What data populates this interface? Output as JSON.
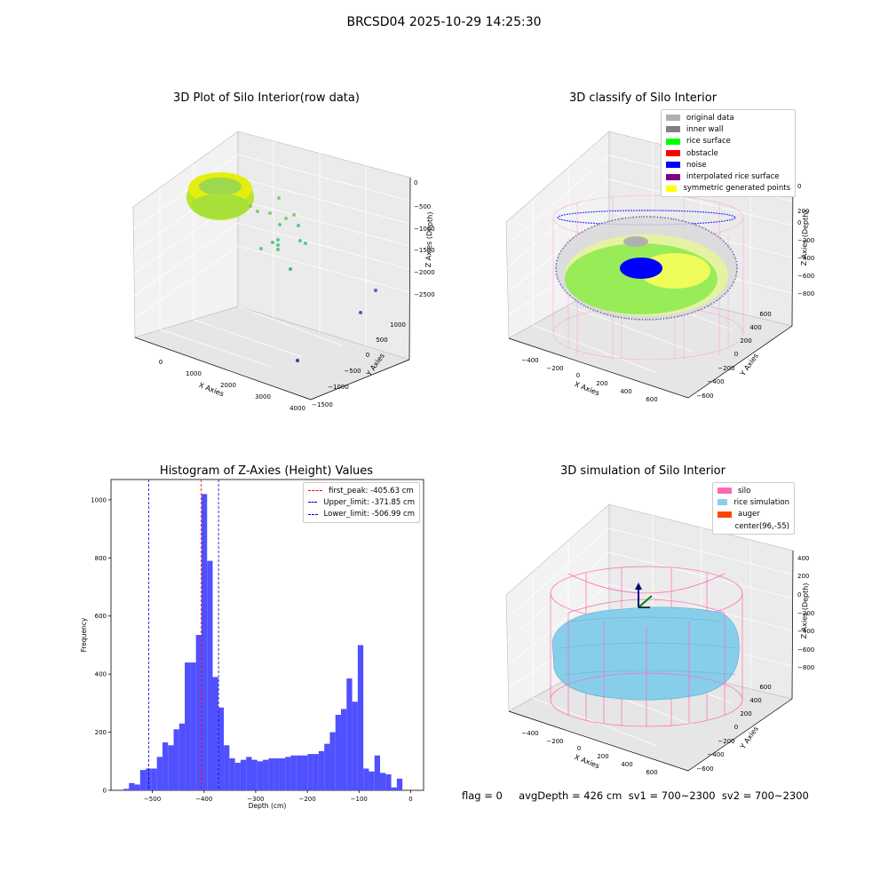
{
  "figure": {
    "title": "BRCSD04 2025-10-29 14:25:30",
    "status_line": "flag = 0     avgDepth = 426 cm  sv1 = 700~2300  sv2 = 700~2300"
  },
  "colors": {
    "histogram_bar": "#5050ff",
    "first_peak_line": "#ff0000",
    "limit_lines": "#0000cc",
    "silo_mesh": "#ff69b4",
    "rice_simulation": "#87ceeb",
    "auger": "#ff4500",
    "inner_wall": "#808080",
    "rice_surface": "#00ff00",
    "noise": "#0000ff",
    "original_data": "#b0b0b0",
    "symmetric_points": "#ffff00",
    "interpolated_surface": "#800080",
    "obstacle": "#ff0000"
  },
  "chart_data": [
    {
      "type": "scatter3d",
      "title": "3D Plot of Silo Interior(row data)",
      "xlabel": "X Axies",
      "ylabel": "Y Axies",
      "zlabel": "Z Axies (Depth)",
      "x_ticks": [
        "0",
        "1000",
        "2000",
        "3000",
        "4000"
      ],
      "y_ticks": [
        "−1500",
        "−1000",
        "−500",
        "0",
        "500",
        "1000"
      ],
      "z_ticks": [
        "0",
        "−500",
        "−1000",
        "−1500",
        "−2000",
        "−2500"
      ],
      "outliers": [
        {
          "x": 3800,
          "y": 1000,
          "z": -2400
        },
        {
          "x": 3700,
          "y": 700,
          "z": -2300
        },
        {
          "x": 3100,
          "y": -1100,
          "z": -2100
        }
      ]
    },
    {
      "type": "scatter3d",
      "title": "3D classify of Silo Interior",
      "xlabel": "X Axies",
      "ylabel": "Y Axies",
      "zlabel": "Z Axies (Depth)",
      "x_ticks": [
        "−400",
        "−200",
        "0",
        "200",
        "400",
        "600"
      ],
      "y_ticks": [
        "−600",
        "−400",
        "−200",
        "0",
        "200",
        "400",
        "600"
      ],
      "z_ticks": [
        "200",
        "0",
        "−200",
        "−400",
        "−600",
        "−800"
      ],
      "z_top_tick_partial": "0",
      "legend": [
        {
          "label": "original data",
          "color": "#b0b0b0"
        },
        {
          "label": "inner wall",
          "color": "#808080"
        },
        {
          "label": "rice surface",
          "color": "#00ff00"
        },
        {
          "label": "obstacle",
          "color": "#ff0000"
        },
        {
          "label": "noise",
          "color": "#0000ff"
        },
        {
          "label": "interpolated rice surface",
          "color": "#800080"
        },
        {
          "label": "symmetric generated points",
          "color": "#ffff00"
        }
      ]
    },
    {
      "type": "bar",
      "title": "Histogram of Z-Axies (Height) Values",
      "xlabel": "Depth (cm)",
      "ylabel": "Frequency",
      "xlim": [
        -580,
        25
      ],
      "ylim": [
        0,
        1070
      ],
      "x_ticks": [
        -500,
        -400,
        -300,
        -200,
        -100,
        0
      ],
      "x_tick_labels": [
        "−500",
        "−400",
        "−300",
        "−200",
        "−100",
        "0"
      ],
      "y_ticks": [
        0,
        200,
        400,
        600,
        800,
        1000
      ],
      "bin_start": -556,
      "bin_width": 10.8,
      "values": [
        5,
        25,
        20,
        70,
        75,
        75,
        115,
        165,
        155,
        210,
        230,
        440,
        440,
        535,
        1020,
        790,
        390,
        285,
        155,
        110,
        95,
        105,
        115,
        105,
        100,
        105,
        110,
        110,
        110,
        115,
        120,
        120,
        120,
        125,
        125,
        135,
        160,
        200,
        260,
        280,
        385,
        305,
        500,
        75,
        65,
        120,
        60,
        55,
        10,
        40
      ],
      "lines": [
        {
          "label": "first_peak: -405.63 cm",
          "x": -405.63,
          "color": "#ff0000"
        },
        {
          "label": "Upper_limit: -371.85 cm",
          "x": -371.85,
          "color": "#0000cc"
        },
        {
          "label": "Lower_limit: -506.99 cm",
          "x": -506.99,
          "color": "#0000cc"
        }
      ]
    },
    {
      "type": "surface3d",
      "title": "3D simulation of Silo Interior",
      "xlabel": "X Axies",
      "ylabel": "Y Axies",
      "zlabel": "Z Axies (Depth)",
      "x_ticks": [
        "−400",
        "−200",
        "0",
        "200",
        "400",
        "600"
      ],
      "y_ticks": [
        "−600",
        "−400",
        "−200",
        "0",
        "200",
        "400",
        "600"
      ],
      "z_ticks": [
        "400",
        "200",
        "0",
        "−200",
        "−400",
        "−600",
        "−800"
      ],
      "legend": [
        {
          "label": "silo",
          "color": "#ff69b4"
        },
        {
          "label": "rice simulation",
          "color": "#87ceeb"
        },
        {
          "label": "auger",
          "color": "#ff4500"
        },
        {
          "label": "center(96,-55)",
          "color": ""
        }
      ]
    }
  ]
}
